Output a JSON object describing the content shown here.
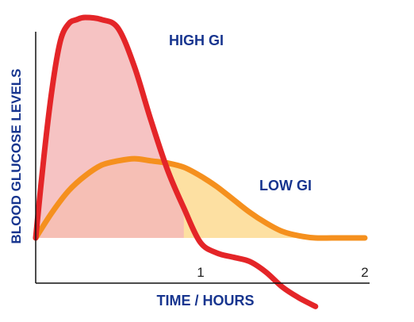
{
  "chart_data": {
    "type": "area",
    "xlabel": "TIME / HOURS",
    "ylabel": "BLOOD GLUCOSE LEVELS",
    "xlim": [
      0,
      2
    ],
    "x_ticks": [
      "1",
      "2"
    ],
    "y_axis_values_shown": false,
    "grid": false,
    "baseline_level": 0,
    "series": [
      {
        "name": "HIGH GI",
        "color": "#e42528",
        "fill": "#f4b8b9",
        "x": [
          0.0,
          0.05,
          0.1,
          0.15,
          0.2,
          0.25,
          0.3,
          0.4,
          0.5,
          0.6,
          0.7,
          0.8,
          0.9,
          1.0,
          1.1,
          1.2,
          1.3,
          1.4,
          1.5,
          1.6,
          1.7
        ],
        "y": [
          0.0,
          0.38,
          0.7,
          0.92,
          1.0,
          1.02,
          1.03,
          1.02,
          0.98,
          0.8,
          0.55,
          0.32,
          0.14,
          -0.02,
          -0.07,
          -0.09,
          -0.11,
          -0.16,
          -0.23,
          -0.28,
          -0.32
        ]
      },
      {
        "name": "LOW GI",
        "color": "#f5901e",
        "fill": "#fde0a2",
        "x": [
          0.0,
          0.1,
          0.2,
          0.3,
          0.4,
          0.5,
          0.6,
          0.7,
          0.8,
          0.9,
          1.0,
          1.1,
          1.2,
          1.3,
          1.4,
          1.5,
          1.6,
          1.7,
          1.8,
          1.9,
          2.0
        ],
        "y": [
          0.0,
          0.12,
          0.22,
          0.29,
          0.34,
          0.36,
          0.37,
          0.36,
          0.35,
          0.33,
          0.29,
          0.24,
          0.18,
          0.12,
          0.07,
          0.03,
          0.01,
          0.0,
          0.0,
          0.0,
          0.0
        ]
      }
    ]
  },
  "colors": {
    "axis": "#111111",
    "label_blue": "#17358f"
  }
}
